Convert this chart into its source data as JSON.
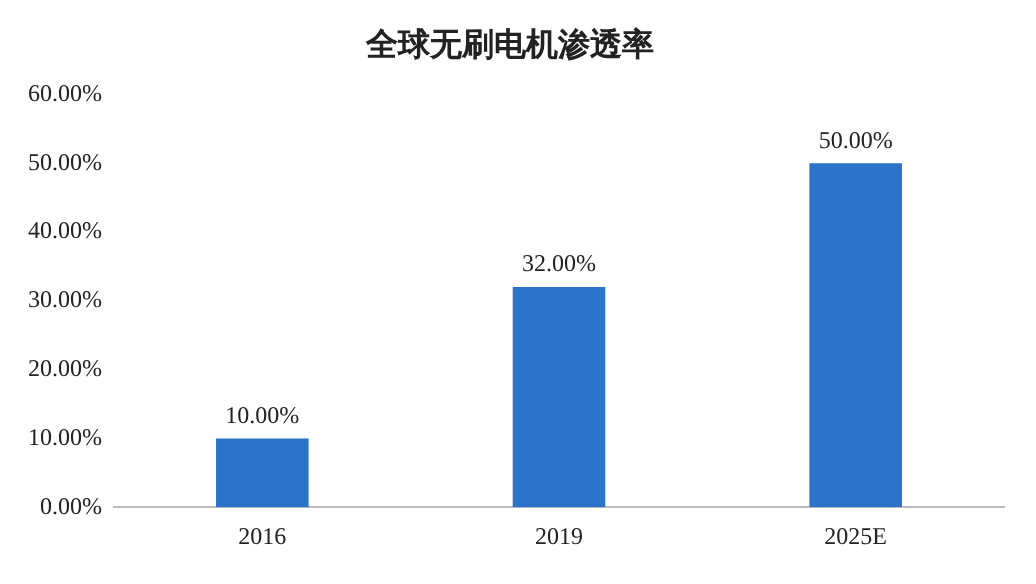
{
  "chart_data": {
    "type": "bar",
    "title": "全球无刷电机渗透率",
    "categories": [
      "2016",
      "2019",
      "2025E"
    ],
    "values": [
      10,
      32,
      50
    ],
    "color": "#2a73c8",
    "value_labels": [
      "10.00%",
      "32.00%",
      "50.00%"
    ],
    "ylim": [
      0,
      60
    ],
    "yticks": [
      {
        "value": 0,
        "label": "0.00%"
      },
      {
        "value": 10,
        "label": "10.00%"
      },
      {
        "value": 20,
        "label": "20.00%"
      },
      {
        "value": 30,
        "label": "30.00%"
      },
      {
        "value": 40,
        "label": "40.00%"
      },
      {
        "value": 50,
        "label": "50.00%"
      },
      {
        "value": 60,
        "label": "60.00%"
      }
    ],
    "grid": false
  }
}
